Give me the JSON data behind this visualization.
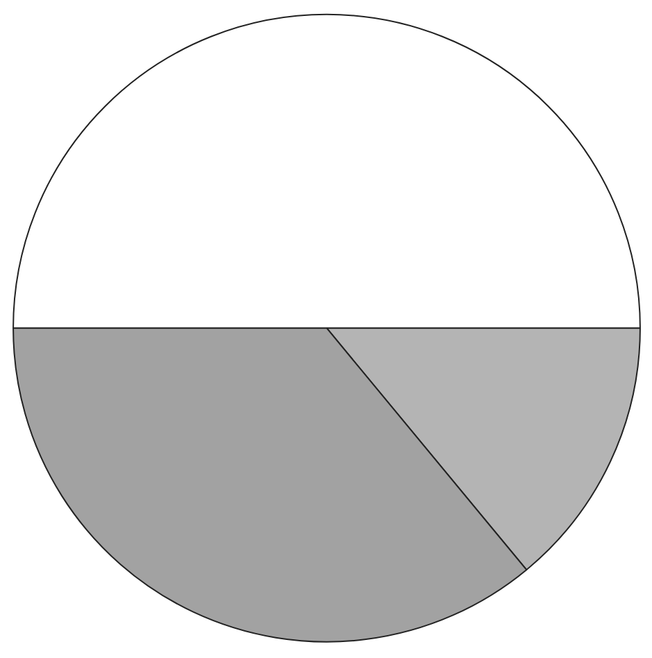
{
  "chart_data": {
    "type": "pie",
    "categories": [
      null,
      null,
      null
    ],
    "values": [
      50,
      14,
      36
    ],
    "colors": [
      "#ffffff",
      "#b4b4b4",
      "#a2a2a2"
    ]
  }
}
